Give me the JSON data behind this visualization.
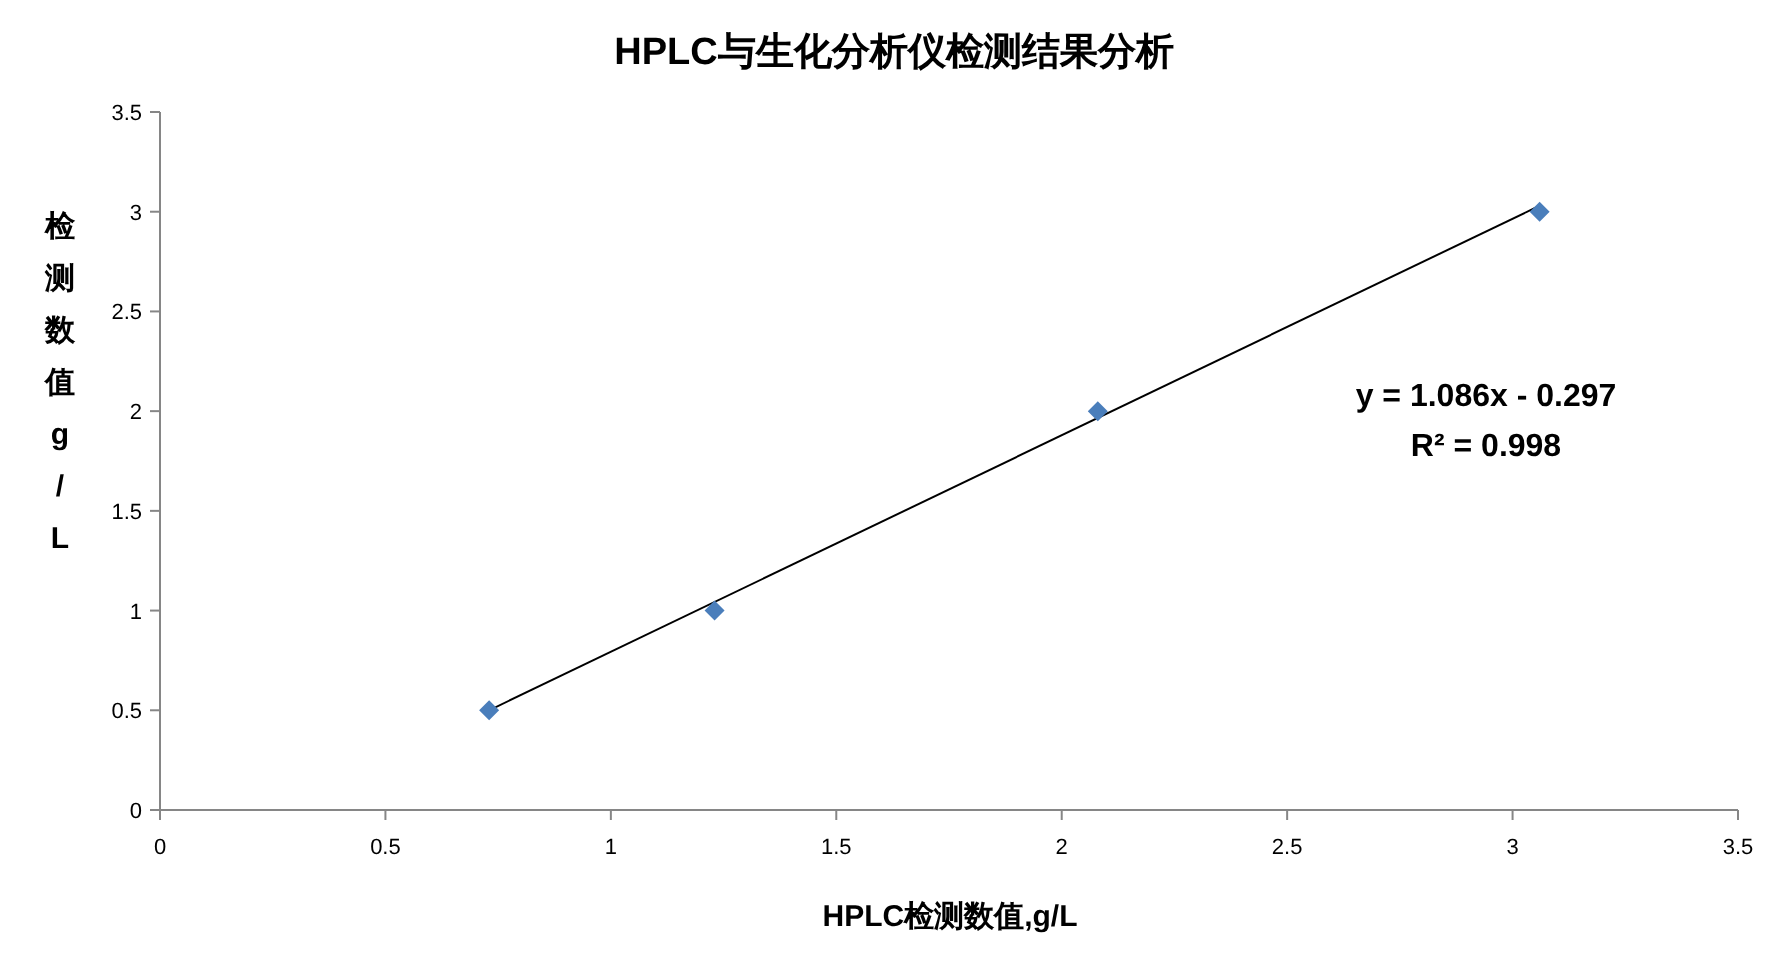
{
  "chart_data": {
    "type": "scatter",
    "title": "HPLC与生化分析仪检测结果分析",
    "xlabel": "HPLC检测数值,g/L",
    "ylabel": "检测数值g/L",
    "xlim": [
      0,
      3.5
    ],
    "ylim": [
      0,
      3.5
    ],
    "xticks": [
      0,
      0.5,
      1,
      1.5,
      2,
      2.5,
      3,
      3.5
    ],
    "yticks": [
      0,
      0.5,
      1,
      1.5,
      2,
      2.5,
      3,
      3.5
    ],
    "annotations": [
      "y = 1.086x - 0.297",
      "R² = 0.998"
    ],
    "series": [
      {
        "marker": "diamond",
        "color": "#4a7ebb",
        "x": [
          0.73,
          1.23,
          2.08,
          3.06
        ],
        "values": [
          0.5,
          1.0,
          2.0,
          3.0
        ]
      },
      {
        "type": "line",
        "color": "#000000",
        "x": [
          0.73,
          3.06
        ],
        "values": [
          0.5,
          3.03
        ]
      }
    ]
  }
}
